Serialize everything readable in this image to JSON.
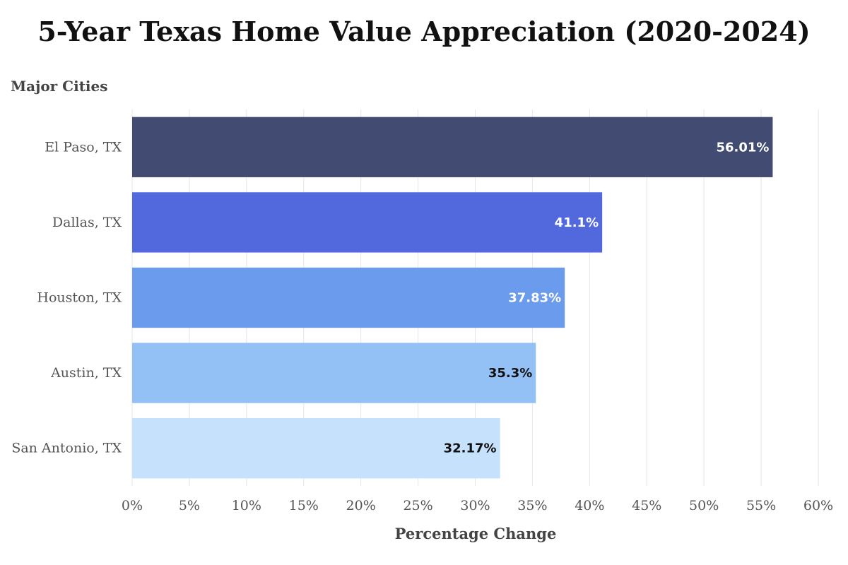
{
  "chart_data": {
    "type": "bar",
    "orientation": "horizontal",
    "title": "5-Year Texas Home Value Appreciation (2020-2024)",
    "subtitle": "Major Cities",
    "xlabel": "Percentage Change",
    "ylabel": "",
    "xlim": [
      0,
      60
    ],
    "grid": true,
    "categories": [
      "El Paso, TX",
      "Dallas, TX",
      "Houston, TX",
      "Austin, TX",
      "San Antonio, TX"
    ],
    "values": [
      56.01,
      41.1,
      37.83,
      35.3,
      32.17
    ],
    "value_labels": [
      "56.01%",
      "41.1%",
      "37.83%",
      "35.3%",
      "32.17%"
    ],
    "bar_colors": [
      "#424c72",
      "#5169dd",
      "#6b9bed",
      "#93c1f5",
      "#c5e1fb"
    ],
    "label_colors": [
      "#ffffff",
      "#ffffff",
      "#ffffff",
      "#111111",
      "#111111"
    ],
    "ticks": [
      0,
      5,
      10,
      15,
      20,
      25,
      30,
      35,
      40,
      45,
      50,
      55,
      60
    ],
    "tick_labels": [
      "0%",
      "5%",
      "10%",
      "15%",
      "20%",
      "25%",
      "30%",
      "35%",
      "40%",
      "45%",
      "50%",
      "55%",
      "60%"
    ]
  }
}
